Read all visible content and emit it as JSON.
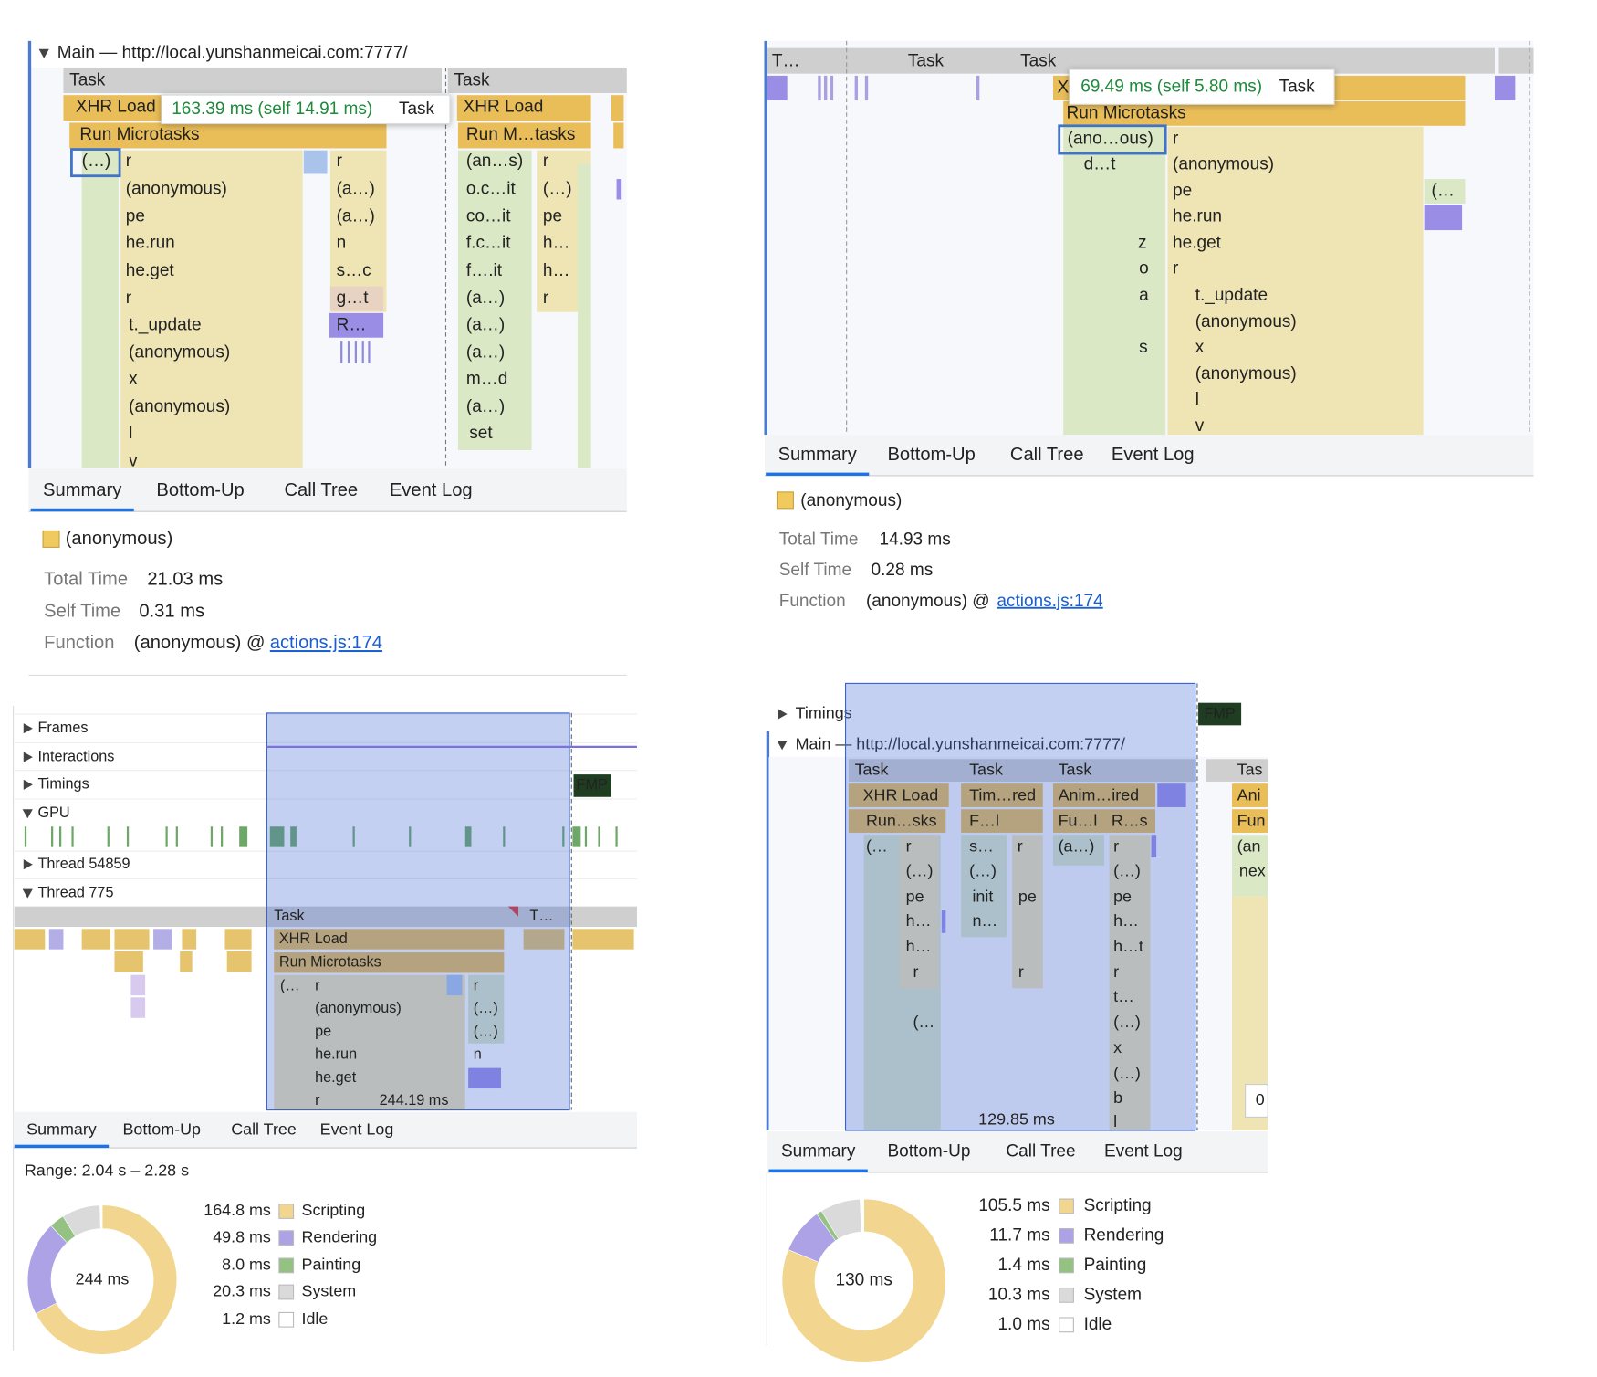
{
  "panels": [
    {
      "header": "Main — http://local.yunshanmeicai.com:7777/",
      "flame": [
        "Task",
        "Task",
        "XHR Load",
        "XHR Load",
        "Run Microtasks",
        "Run M…tasks",
        "(…)",
        "r",
        "r",
        "(an…s)",
        "r",
        "(anonymous)",
        "(a…)",
        "o.c…it",
        "(…)",
        "pe",
        "(a…)",
        "co…it",
        "pe",
        "he.run",
        "n",
        "f.c…it",
        "h…",
        "he.get",
        "s…c",
        "f….it",
        "h…",
        "r",
        "g…t",
        "(a…)",
        "r",
        "t._update",
        "R…",
        "(a…)",
        "(anonymous)",
        "(a…)",
        "x",
        "m…d",
        "(anonymous)",
        "(a…)",
        "l",
        "set",
        "v"
      ],
      "tooltip": {
        "time": "163.39 ms (self 14.91 ms)",
        "label": "Task"
      },
      "tabs": [
        "Summary",
        "Bottom-Up",
        "Call Tree",
        "Event Log"
      ],
      "summary": {
        "name": "(anonymous)",
        "rows": [
          {
            "label": "Total Time",
            "value": "21.03 ms"
          },
          {
            "label": "Self Time",
            "value": "0.31 ms"
          },
          {
            "label": "Function",
            "value": "(anonymous) @",
            "link": "actions.js:174"
          }
        ]
      }
    },
    {
      "flame": [
        "T…",
        "Task",
        "Task",
        "X",
        "Run Microtasks",
        "(ano…ous)",
        "r",
        "d…t",
        "(anonymous)",
        "pe",
        "(…",
        "he.run",
        "z",
        "he.get",
        "o",
        "r",
        "a",
        "t._update",
        "(anonymous)",
        "s",
        "x",
        "(anonymous)",
        "l",
        "v"
      ],
      "tooltip": {
        "time": "69.49 ms (self 5.80 ms)",
        "label": "Task"
      },
      "tabs": [
        "Summary",
        "Bottom-Up",
        "Call Tree",
        "Event Log"
      ],
      "summary": {
        "name": "(anonymous)",
        "rows": [
          {
            "label": "Total Time",
            "value": "14.93 ms"
          },
          {
            "label": "Self Time",
            "value": "0.28 ms"
          },
          {
            "label": "Function",
            "value": "(anonymous) @",
            "link": "actions.js:174"
          }
        ]
      }
    },
    {
      "tracks": [
        "Frames",
        "Interactions",
        "Timings",
        "GPU",
        "Thread 54859",
        "Thread 775"
      ],
      "fmp": "FMP",
      "flame": [
        "Task",
        "T…",
        "XHR Load",
        "Run Microtasks",
        "(…",
        "r",
        "r",
        "(anonymous)",
        "(…)",
        "pe",
        "(…)",
        "he.run",
        "n",
        "he.get",
        "r",
        "244.19 ms"
      ],
      "tabs": [
        "Summary",
        "Bottom-Up",
        "Call Tree",
        "Event Log"
      ],
      "range": "Range: 2.04 s – 2.28 s",
      "breakdown": {
        "type": "pie",
        "total_label": "244 ms",
        "categories": [
          "Scripting",
          "Rendering",
          "Painting",
          "System",
          "Idle"
        ],
        "values": [
          164.8,
          49.8,
          8.0,
          20.3,
          1.2
        ],
        "value_labels": [
          "164.8 ms",
          "49.8 ms",
          "8.0 ms",
          "20.3 ms",
          "1.2 ms"
        ],
        "colors": [
          "#f2d68f",
          "#ada2e6",
          "#93c283",
          "#dadada",
          "#ffffff"
        ]
      }
    },
    {
      "tracks": [
        "Timings",
        "Main — http://local.yunshanmeicai.com:7777/"
      ],
      "fmp": "FMP",
      "flame": [
        "Task",
        "Task",
        "Task",
        "Tas",
        "XHR Load",
        "Tim…red",
        "Anim…ired",
        "Ani",
        "Run…sks",
        "F…l",
        "Fu…l",
        "R…s",
        "Fun",
        "(…",
        "r",
        "s…",
        "r",
        "(a…)",
        "r",
        "(an",
        "(…)",
        "(…)",
        "(…)",
        "nex",
        "pe",
        "init",
        "pe",
        "pe",
        "h…",
        "n…",
        "h…",
        "h…",
        "h…t",
        "r",
        "r",
        "r",
        "t…",
        "(…",
        "(…)",
        "x",
        "(…)",
        "b",
        "l",
        "129.85 ms",
        "0"
      ],
      "tabs": [
        "Summary",
        "Bottom-Up",
        "Call Tree",
        "Event Log"
      ],
      "breakdown": {
        "type": "pie",
        "total_label": "130 ms",
        "categories": [
          "Scripting",
          "Rendering",
          "Painting",
          "System",
          "Idle"
        ],
        "values": [
          105.5,
          11.7,
          1.4,
          10.3,
          1.0
        ],
        "value_labels": [
          "105.5 ms",
          "11.7 ms",
          "1.4 ms",
          "10.3 ms",
          "1.0 ms"
        ],
        "colors": [
          "#f2d68f",
          "#ada2e6",
          "#93c283",
          "#dadada",
          "#ffffff"
        ]
      }
    }
  ]
}
